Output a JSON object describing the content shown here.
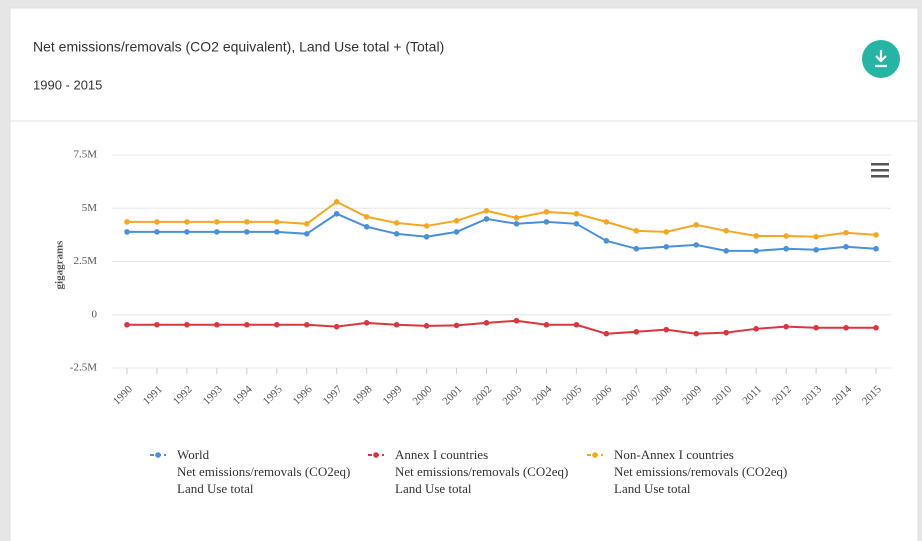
{
  "chart_data": {
    "type": "line",
    "title": "Net emissions/removals (CO2 equivalent), Land Use total + (Total)",
    "subtitle": "1990 - 2015",
    "y_label": "gigagrams",
    "categories": [
      "1990",
      "1991",
      "1992",
      "1993",
      "1994",
      "1995",
      "1996",
      "1997",
      "1998",
      "1999",
      "2000",
      "2001",
      "2002",
      "2003",
      "2004",
      "2005",
      "2006",
      "2007",
      "2008",
      "2009",
      "2010",
      "2011",
      "2012",
      "2013",
      "2014",
      "2015"
    ],
    "series": [
      {
        "name": "World\nNet emissions/removals (CO2eq)\nLand Use total",
        "color": "#4a90d9",
        "values": [
          3890000,
          3890000,
          3890000,
          3890000,
          3890000,
          3890000,
          3800000,
          4740000,
          4130000,
          3800000,
          3660000,
          3890000,
          4500000,
          4270000,
          4360000,
          4270000,
          3470000,
          3100000,
          3190000,
          3280000,
          3000000,
          3000000,
          3100000,
          3050000,
          3190000,
          3100000
        ]
      },
      {
        "name": "Annex I countries\nNet emissions/removals (CO2eq)\nLand Use total",
        "color": "#d9363e",
        "values": [
          -470000,
          -470000,
          -470000,
          -470000,
          -470000,
          -470000,
          -470000,
          -560000,
          -380000,
          -470000,
          -520000,
          -500000,
          -380000,
          -280000,
          -470000,
          -470000,
          -890000,
          -800000,
          -700000,
          -890000,
          -840000,
          -660000,
          -560000,
          -610000,
          -610000,
          -610000
        ]
      },
      {
        "name": "Non-Annex I countries\nNet emissions/removals (CO2eq)\nLand Use total",
        "color": "#f5a623",
        "values": [
          4360000,
          4360000,
          4360000,
          4360000,
          4360000,
          4360000,
          4270000,
          5300000,
          4600000,
          4310000,
          4170000,
          4410000,
          4880000,
          4550000,
          4830000,
          4740000,
          4360000,
          3940000,
          3890000,
          4220000,
          3940000,
          3700000,
          3700000,
          3660000,
          3850000,
          3750000
        ]
      }
    ],
    "ylim": [
      -2500000,
      7500000
    ],
    "yticks": [
      {
        "value": -2500000,
        "label": "-2.5M"
      },
      0,
      {
        "value": 2500000,
        "label": "2.5M"
      },
      {
        "value": 5000000,
        "label": "5M"
      },
      {
        "value": 7500000,
        "label": "7.5M"
      }
    ],
    "grid": true
  }
}
